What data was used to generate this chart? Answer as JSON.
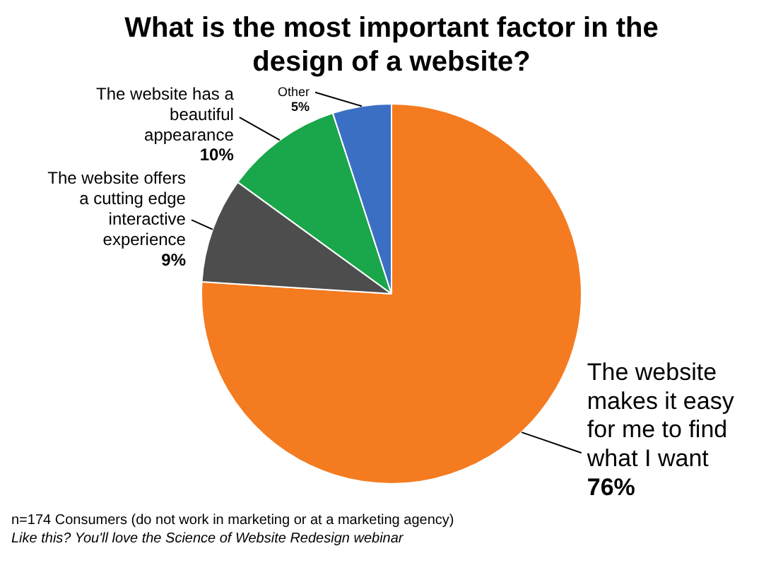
{
  "chart_data": {
    "type": "pie",
    "title": "What is the most important factor in the design of a website?",
    "categories": [
      "The website makes it easy for me to find what I want",
      "The website offers a cutting edge interactive experience",
      "The website has a beautiful appearance",
      "Other"
    ],
    "values": [
      76,
      9,
      10,
      5
    ],
    "value_labels": [
      "76%",
      "9%",
      "10%",
      "5%"
    ],
    "colors": [
      "#f47b20",
      "#4d4d4d",
      "#1aa64a",
      "#3b6fc4"
    ],
    "annotations": [
      "n=174 Consumers (do not work in marketing or at a marketing agency)",
      "Like this?  You'll love the Science of Website Redesign webinar"
    ]
  }
}
